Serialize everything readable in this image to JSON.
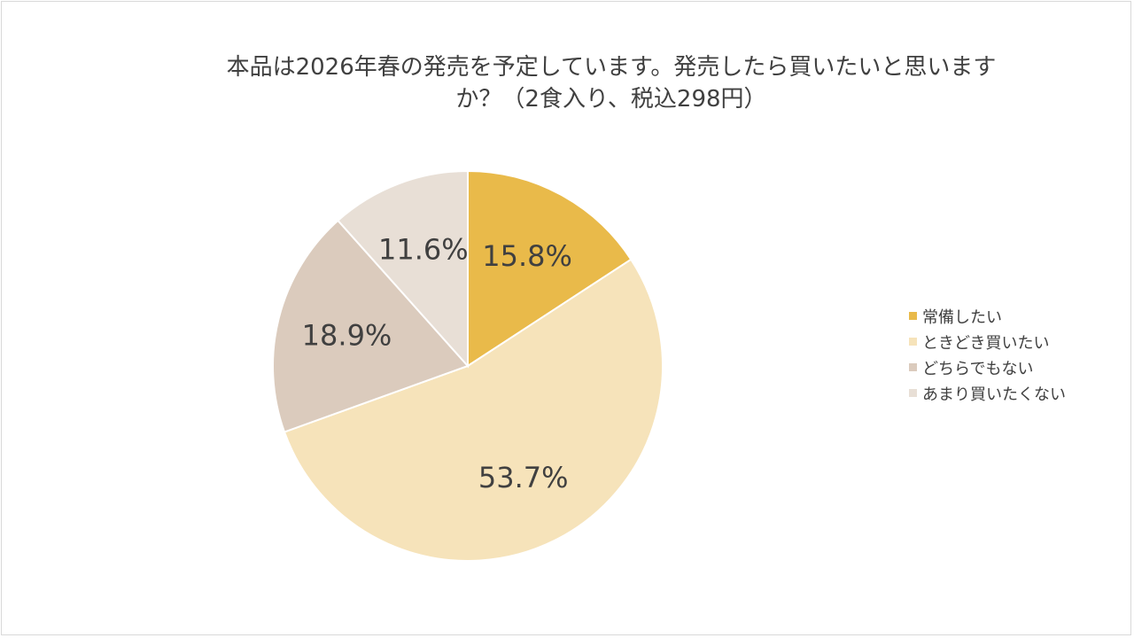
{
  "title": {
    "line1": "本品は2026年春の発売を予定しています。発売したら買いたいと思います",
    "line2": "か？（2食入り、税込298円）"
  },
  "chart_data": {
    "type": "pie",
    "title": "本品は2026年春の発売を予定しています。発売したら買いたいと思いますか？（2食入り、税込298円）",
    "categories": [
      "常備したい",
      "ときどき買いたい",
      "どちらでもない",
      "あまり買いたくない"
    ],
    "values": [
      15.8,
      53.7,
      18.9,
      11.6
    ],
    "labels": [
      "15.8%",
      "53.7%",
      "18.9%",
      "11.6%"
    ],
    "colors": [
      "#E9BA4A",
      "#F6E3BA",
      "#DBCBBD",
      "#E8DFD6"
    ],
    "legend_position": "right"
  }
}
